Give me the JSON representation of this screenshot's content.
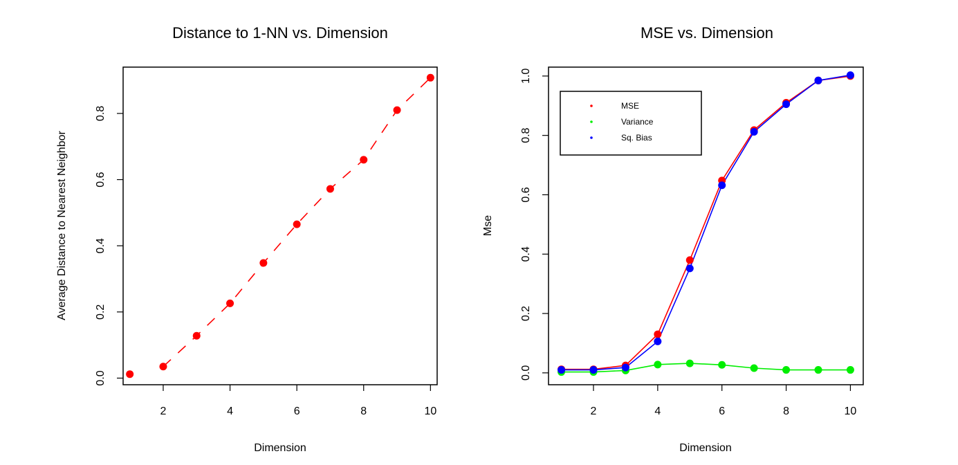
{
  "chart_data": [
    {
      "type": "scatter",
      "title": "Distance to 1-NN vs. Dimension",
      "xlabel": "Dimension",
      "ylabel": "Average Distance to Nearest Neighbor",
      "xlim": [
        0.8,
        10.2
      ],
      "ylim": [
        -0.02,
        0.94
      ],
      "xticks": [
        2,
        4,
        6,
        8,
        10
      ],
      "yticks": [
        0.0,
        0.2,
        0.4,
        0.6,
        0.8
      ],
      "xtick_labels": [
        "2",
        "4",
        "6",
        "8",
        "10"
      ],
      "ytick_labels": [
        "0.0",
        "0.2",
        "0.4",
        "0.6",
        "0.8"
      ],
      "grid": false,
      "legend": null,
      "x": [
        1,
        2,
        3,
        4,
        5,
        6,
        7,
        8,
        9,
        10
      ],
      "series": [
        {
          "values": [
            0.012,
            0.035,
            0.128,
            0.226,
            0.348,
            0.465,
            0.572,
            0.66,
            0.81,
            0.908
          ],
          "color": "#ff0000",
          "style": "points+dashed-line"
        }
      ]
    },
    {
      "type": "line",
      "title": "MSE vs. Dimension",
      "xlabel": "Dimension",
      "ylabel": "Mse",
      "xlim": [
        0.6,
        10.4
      ],
      "ylim": [
        -0.04,
        1.03
      ],
      "xticks": [
        2,
        4,
        6,
        8,
        10
      ],
      "yticks": [
        0.0,
        0.2,
        0.4,
        0.6,
        0.8,
        1.0
      ],
      "xtick_labels": [
        "2",
        "4",
        "6",
        "8",
        "10"
      ],
      "ytick_labels": [
        "0.0",
        "0.2",
        "0.4",
        "0.6",
        "0.8",
        "1.0"
      ],
      "grid": false,
      "legend": {
        "position": "top-left",
        "entries": [
          "MSE",
          "Variance",
          "Sq. Bias"
        ]
      },
      "x": [
        1,
        2,
        3,
        4,
        5,
        6,
        7,
        8,
        9,
        10
      ],
      "series": [
        {
          "name": "MSE",
          "color": "#ff0000",
          "values": [
            0.012,
            0.012,
            0.025,
            0.13,
            0.38,
            0.648,
            0.818,
            0.91,
            0.985,
            1.0
          ]
        },
        {
          "name": "Variance",
          "color": "#00ee00",
          "values": [
            0.003,
            0.003,
            0.008,
            0.028,
            0.032,
            0.027,
            0.016,
            0.01,
            0.01,
            0.01
          ]
        },
        {
          "name": "Sq. Bias",
          "color": "#0000ff",
          "values": [
            0.01,
            0.01,
            0.018,
            0.106,
            0.352,
            0.632,
            0.812,
            0.905,
            0.985,
            1.003
          ]
        }
      ]
    }
  ]
}
